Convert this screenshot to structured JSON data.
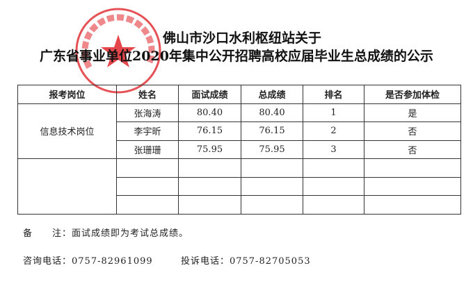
{
  "document": {
    "title_line1": "佛山市沙口水利枢纽站关于",
    "title_line2": "广东省事业单位2020年集中公开招聘高校应届毕业生总成绩的公示",
    "stamp_text": "佛山市沙口水利枢纽站",
    "stamp_color": "#e0262b",
    "table": {
      "headers": [
        "报考岗位",
        "姓名",
        "面试成绩",
        "总成绩",
        "排名",
        "是否参加体检"
      ],
      "position": "信息技术岗位",
      "rows": [
        {
          "name": "张海涛",
          "interview": "80.40",
          "total": "80.40",
          "rank": "1",
          "physical": "是"
        },
        {
          "name": "李宇昕",
          "interview": "76.15",
          "total": "76.15",
          "rank": "2",
          "physical": "否"
        },
        {
          "name": "张珊珊",
          "interview": "75.95",
          "total": "75.95",
          "rank": "3",
          "physical": "否"
        }
      ]
    },
    "note_label": "备　　注：",
    "note_text": "面试成绩即为考试总成绩。",
    "consult_label": "咨询电话：",
    "consult_phone": "0757-82961099",
    "complaint_label": "投诉电话：",
    "complaint_phone": "0757-82705053"
  }
}
